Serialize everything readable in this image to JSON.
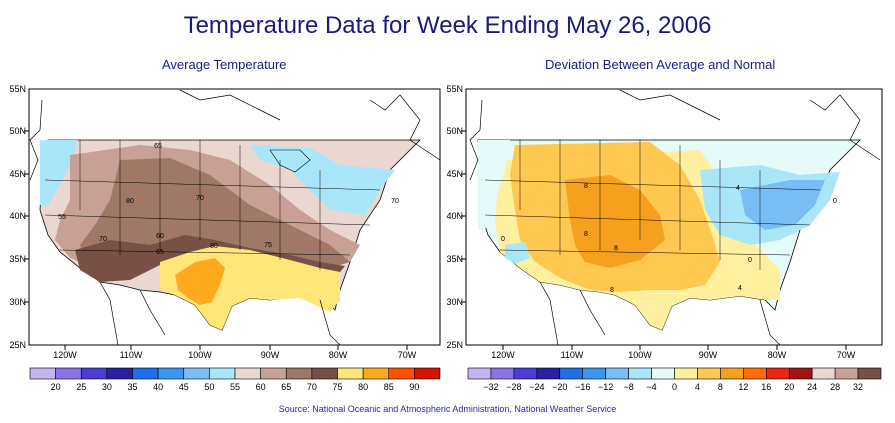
{
  "title": "Temperature Data for Week Ending May 26, 2006",
  "source": "Source:  National Oceanic and Atmospheric Administration, National Weather Service",
  "colors": {
    "title": "#1a1a7a",
    "frame": "#000000",
    "contour_line": "#000000"
  },
  "maps": [
    {
      "id": "avg",
      "subtitle": "Average Temperature",
      "lat_labels": [
        "55N",
        "50N",
        "45N",
        "40N",
        "35N",
        "30N",
        "25N"
      ],
      "lon_labels": [
        "120W",
        "110W",
        "100W",
        "90W",
        "80W",
        "70W"
      ],
      "contour_labels": [
        "65",
        "80",
        "70",
        "55",
        "70",
        "60",
        "65",
        "80",
        "75",
        "70"
      ],
      "legend": {
        "labels": [
          "20",
          "25",
          "30",
          "35",
          "40",
          "45",
          "50",
          "55",
          "60",
          "65",
          "70",
          "75",
          "80",
          "85",
          "90"
        ],
        "colors": [
          "#c3b4f0",
          "#8a73e6",
          "#4b3cd2",
          "#2a1f9e",
          "#1e6ee6",
          "#3c96f0",
          "#78bef5",
          "#aae6fa",
          "#ebd7d2",
          "#c8a096",
          "#a07868",
          "#785046",
          "#ffe678",
          "#ffaa1e",
          "#ff5000",
          "#d21400"
        ]
      }
    },
    {
      "id": "dev",
      "subtitle": "Deviation Between Average and Normal",
      "lat_labels": [
        "55N",
        "50N",
        "45N",
        "40N",
        "35N",
        "30N",
        "25N"
      ],
      "lon_labels": [
        "120W",
        "110W",
        "100W",
        "90W",
        "80W",
        "70W"
      ],
      "contour_labels": [
        "8",
        "8",
        "8",
        "4",
        "0",
        "0",
        "4",
        "0",
        "8"
      ],
      "legend": {
        "labels": [
          "−32",
          "−28",
          "−24",
          "−20",
          "−16",
          "−12",
          "−8",
          "−4",
          "0",
          "4",
          "8",
          "12",
          "16",
          "20",
          "24",
          "28",
          "32"
        ],
        "colors": [
          "#c3b4f0",
          "#8a73e6",
          "#4b3cd2",
          "#2a1f9e",
          "#1e6ee6",
          "#3c96f0",
          "#78bef5",
          "#aae6fa",
          "#e6fafa",
          "#fff0a0",
          "#ffc850",
          "#f5a01e",
          "#ff6e00",
          "#e62814",
          "#a01414",
          "#ebd7d2",
          "#c8a096",
          "#785046"
        ]
      }
    }
  ]
}
